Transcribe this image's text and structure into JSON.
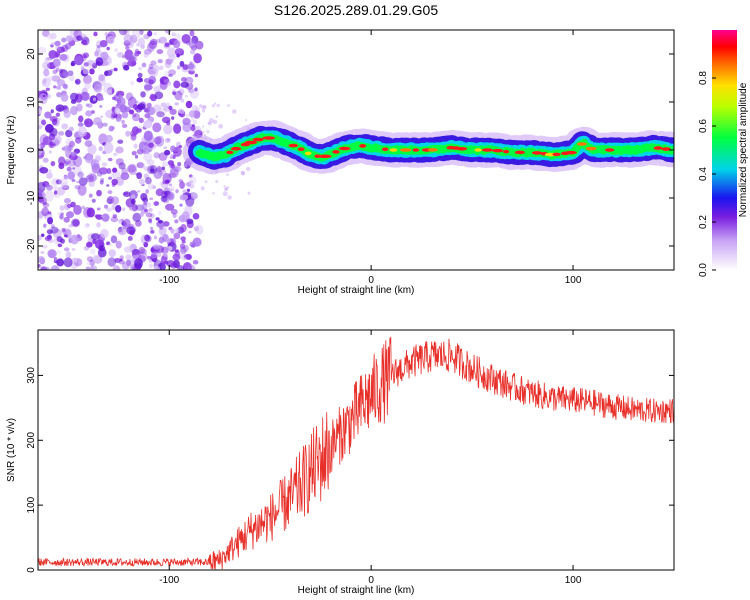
{
  "title": "S126.2025.289.01.29.G05",
  "chart_data": [
    {
      "type": "heatmap",
      "name": "spectrogram",
      "xlabel": "Height of straight line (km)",
      "ylabel": "Frequency (Hz)",
      "xlim": [
        -165,
        150
      ],
      "ylim": [
        -25,
        25
      ],
      "xticks": [
        -100,
        0,
        100
      ],
      "yticks": [
        20,
        10,
        0,
        -10,
        -20
      ],
      "noise_region": [
        -165,
        -85
      ],
      "ridge": [
        [
          -85,
          -0.5
        ],
        [
          -78,
          -1.5
        ],
        [
          -72,
          -1
        ],
        [
          -66,
          0.5
        ],
        [
          -60,
          1.5
        ],
        [
          -54,
          2.5
        ],
        [
          -48,
          2.5
        ],
        [
          -42,
          1.5
        ],
        [
          -36,
          0.5
        ],
        [
          -30,
          -1
        ],
        [
          -24,
          -1.5
        ],
        [
          -18,
          -0.5
        ],
        [
          -12,
          0.5
        ],
        [
          -6,
          1
        ],
        [
          0,
          0.5
        ],
        [
          10,
          0
        ],
        [
          20,
          0
        ],
        [
          30,
          0
        ],
        [
          40,
          0.5
        ],
        [
          50,
          0
        ],
        [
          60,
          0
        ],
        [
          70,
          -0.5
        ],
        [
          80,
          -0.5
        ],
        [
          90,
          -1
        ],
        [
          100,
          -0.5
        ],
        [
          105,
          1.5
        ],
        [
          110,
          0
        ],
        [
          120,
          0
        ],
        [
          130,
          0
        ],
        [
          140,
          0.5
        ],
        [
          150,
          0
        ]
      ],
      "colorbar": {
        "label": "Normalized spectral amplitude",
        "range": [
          0,
          1
        ],
        "ticks": [
          "0.0",
          "0.2",
          "0.4",
          "0.6",
          "0.8"
        ]
      }
    },
    {
      "type": "line",
      "name": "snr",
      "xlabel": "Height of straight line (km)",
      "ylabel": "SNR (10 * v/v)",
      "xlim": [
        -165,
        150
      ],
      "ylim": [
        0,
        370
      ],
      "xticks": [
        -100,
        0,
        100
      ],
      "yticks": [
        0,
        100,
        200,
        300
      ],
      "color": "#e8302a",
      "anchors": [
        [
          -165,
          12
        ],
        [
          -80,
          12
        ],
        [
          -75,
          15
        ],
        [
          -70,
          30
        ],
        [
          -60,
          60
        ],
        [
          -50,
          80
        ],
        [
          -40,
          110
        ],
        [
          -30,
          150
        ],
        [
          -20,
          190
        ],
        [
          -10,
          230
        ],
        [
          0,
          270
        ],
        [
          10,
          300
        ],
        [
          20,
          320
        ],
        [
          30,
          330
        ],
        [
          40,
          330
        ],
        [
          50,
          310
        ],
        [
          60,
          295
        ],
        [
          70,
          282
        ],
        [
          80,
          272
        ],
        [
          90,
          265
        ],
        [
          100,
          262
        ],
        [
          110,
          258
        ],
        [
          120,
          252
        ],
        [
          130,
          247
        ],
        [
          140,
          245
        ],
        [
          150,
          246
        ]
      ]
    }
  ]
}
